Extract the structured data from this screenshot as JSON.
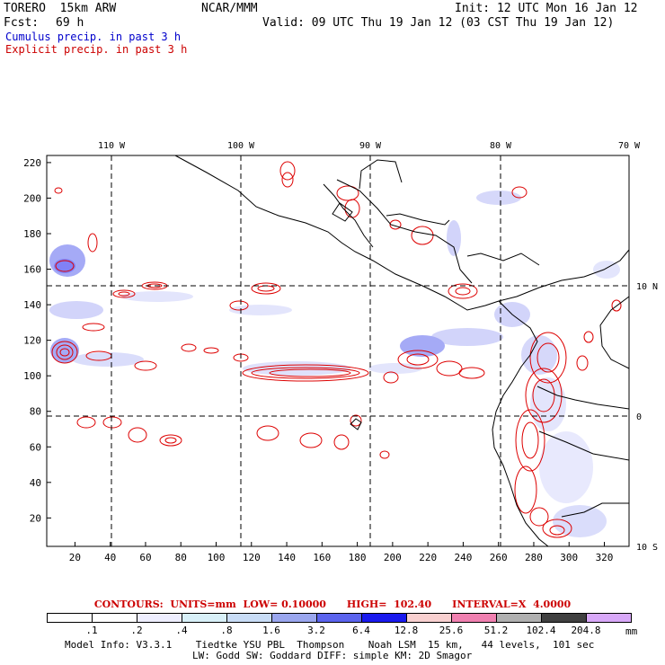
{
  "header": {
    "model": "TORERO  15km ARW",
    "center": "NCAR/MMM",
    "init": "Init: 12 UTC Mon 16 Jan 12",
    "fcst_label": "Fcst:",
    "fcst_value": "69 h",
    "valid": "Valid: 09 UTC Thu 19 Jan 12 (03 CST Thu 19 Jan 12)",
    "cumulus": "Cumulus precip. in past 3 h",
    "explicit": "Explicit precip. in past 3 h"
  },
  "map": {
    "top_longitudes": [
      "110 W",
      "100 W",
      "90 W",
      "80 W",
      "70 W"
    ],
    "right_latitudes": [
      "10 N",
      "0",
      "10 S"
    ],
    "y_ticks": [
      "220",
      "200",
      "180",
      "160",
      "140",
      "120",
      "100",
      "80",
      "60",
      "40",
      "20"
    ],
    "x_ticks": [
      "20",
      "40",
      "60",
      "80",
      "100",
      "120",
      "140",
      "160",
      "180",
      "200",
      "220",
      "240",
      "260",
      "280",
      "300",
      "320"
    ],
    "colors": {
      "cumulus": "#3344dd",
      "explicit": "#dd0000",
      "coast": "#000000",
      "grid": "#000000"
    }
  },
  "contours": {
    "text": "CONTOURS:  UNITS=mm  LOW= 0.10000      HIGH=  102.40      INTERVAL=X  4.0000"
  },
  "colorbar": {
    "labels": [
      ".1",
      ".2",
      ".4",
      ".8",
      "1.6",
      "3.2",
      "6.4",
      "12.8",
      "25.6",
      "51.2",
      "102.4",
      "204.8"
    ],
    "units": "mm",
    "colors": [
      "#ffffff",
      "#ffffff",
      "#eeeeff",
      "#d8f0f8",
      "#c8dcf6",
      "#9aa6ee",
      "#5b64ee",
      "#1a1aee",
      "#f8d0d0",
      "#f080b0",
      "#b0b0b0",
      "#404040",
      "#d8a8f8"
    ]
  },
  "footer": {
    "line1": "Model Info: V3.3.1    Tiedtke YSU PBL  Thompson    Noah LSM  15 km,   44 levels,  101 sec",
    "line2": "LW: Godd SW: Goddard DIFF: simple KM: 2D Smagor"
  }
}
